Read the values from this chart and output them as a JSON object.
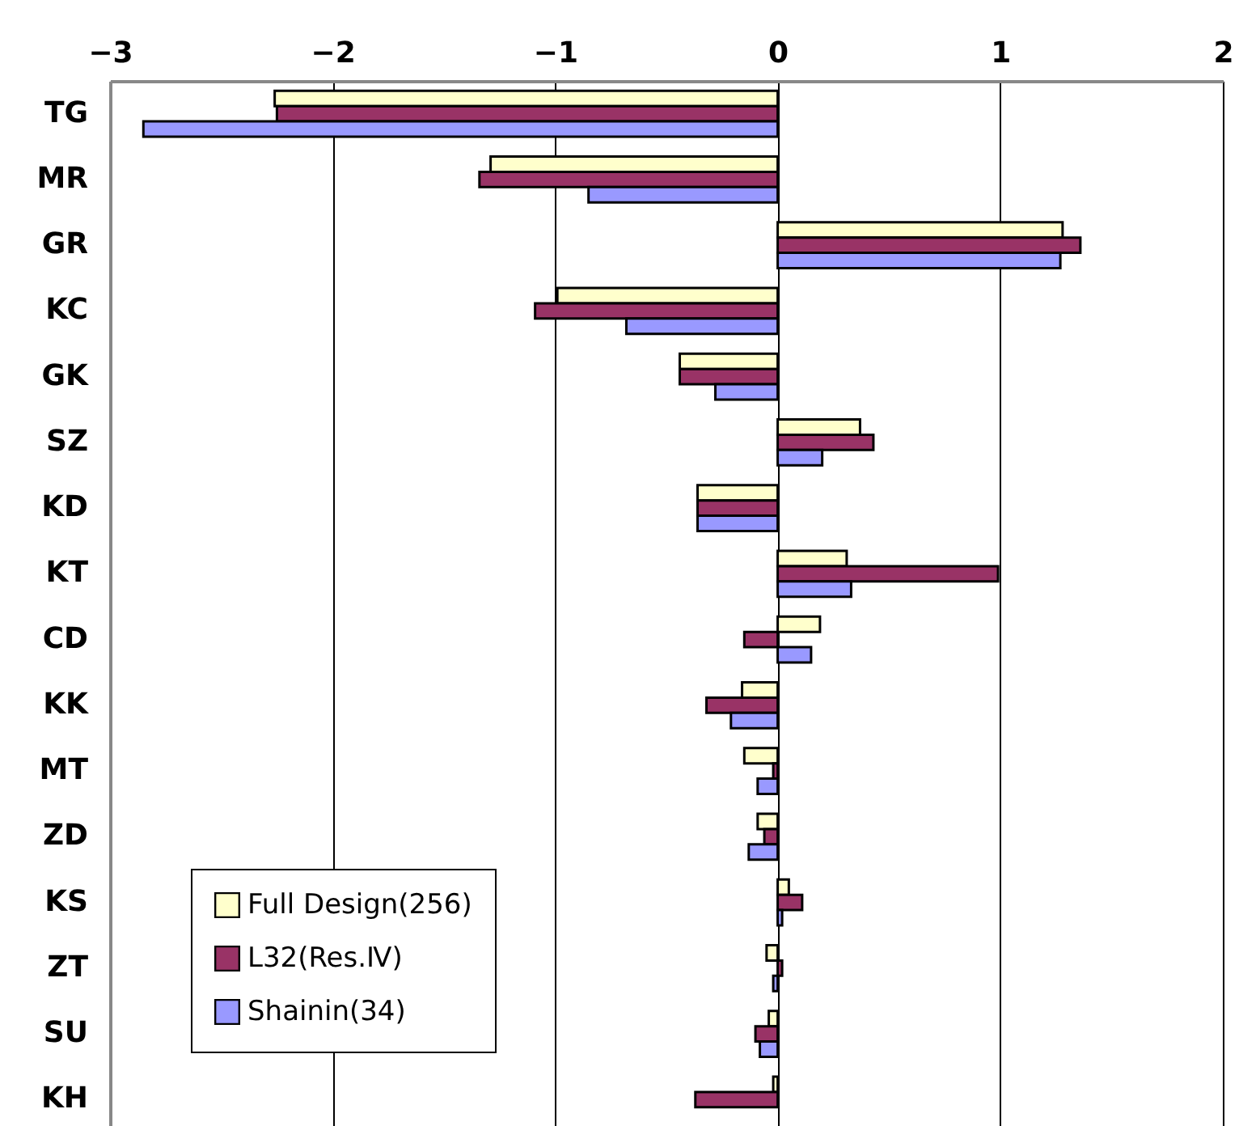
{
  "chart_data": {
    "type": "bar",
    "orientation": "horizontal",
    "categories": [
      "TG",
      "MR",
      "GR",
      "KC",
      "GK",
      "SZ",
      "KD",
      "KT",
      "CD",
      "KK",
      "MT",
      "ZD",
      "KS",
      "ZT",
      "SU",
      "KH"
    ],
    "series": [
      {
        "name": "Full Design(256)",
        "color": "#ffffcc",
        "values": [
          -2.26,
          -1.29,
          1.28,
          -0.99,
          -0.44,
          0.37,
          -0.36,
          0.31,
          0.19,
          -0.16,
          -0.15,
          -0.09,
          0.05,
          -0.05,
          -0.04,
          -0.02
        ]
      },
      {
        "name": "L32(Res.Ⅳ)",
        "color": "#993366",
        "values": [
          -2.25,
          -1.34,
          1.36,
          -1.09,
          -0.44,
          0.43,
          -0.36,
          0.99,
          -0.15,
          -0.32,
          -0.02,
          -0.06,
          0.11,
          0.02,
          -0.1,
          -0.37
        ]
      },
      {
        "name": "Shainin(34)",
        "color": "#9999ff",
        "values": [
          -2.85,
          -0.85,
          1.27,
          -0.68,
          -0.28,
          0.2,
          -0.36,
          0.33,
          0.15,
          -0.21,
          -0.09,
          -0.13,
          0.02,
          -0.02,
          -0.08,
          null
        ]
      }
    ],
    "xlim": [
      -3,
      2
    ],
    "xticks": [
      -3,
      -2,
      -1,
      0,
      1,
      2
    ],
    "grid": "x",
    "legend": "bottom left"
  }
}
